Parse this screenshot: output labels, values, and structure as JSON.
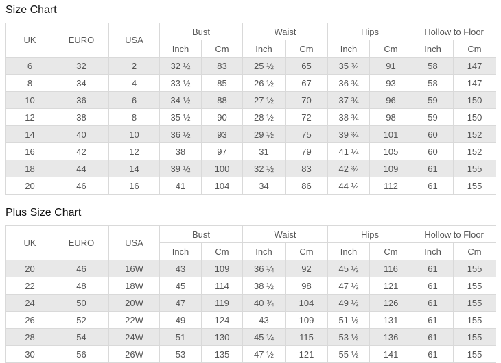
{
  "page": {
    "titles": [
      "Size Chart",
      "Plus Size Chart"
    ]
  },
  "colors": {
    "background": "#ffffff",
    "stripe_row": "#e8e8e8",
    "table_border": "#d9d9d9",
    "cell_text": "#555555",
    "title_text": "#111111"
  },
  "chart_data": [
    {
      "type": "table",
      "title": "Size Chart",
      "column_groups": [
        {
          "label": "UK",
          "colspan": 1
        },
        {
          "label": "EURO",
          "colspan": 1
        },
        {
          "label": "USA",
          "colspan": 1
        },
        {
          "label": "Bust",
          "colspan": 2
        },
        {
          "label": "Waist",
          "colspan": 2
        },
        {
          "label": "Hips",
          "colspan": 2
        },
        {
          "label": "Hollow to Floor",
          "colspan": 2
        }
      ],
      "sub_headers": [
        "Inch",
        "Cm",
        "Inch",
        "Cm",
        "Inch",
        "Cm",
        "Inch",
        "Cm"
      ],
      "rows": [
        [
          "6",
          "32",
          "2",
          "32 ½",
          "83",
          "25 ½",
          "65",
          "35 ¾",
          "91",
          "58",
          "147"
        ],
        [
          "8",
          "34",
          "4",
          "33 ½",
          "85",
          "26 ½",
          "67",
          "36 ¾",
          "93",
          "58",
          "147"
        ],
        [
          "10",
          "36",
          "6",
          "34 ½",
          "88",
          "27 ½",
          "70",
          "37 ¾",
          "96",
          "59",
          "150"
        ],
        [
          "12",
          "38",
          "8",
          "35 ½",
          "90",
          "28 ½",
          "72",
          "38 ¾",
          "98",
          "59",
          "150"
        ],
        [
          "14",
          "40",
          "10",
          "36 ½",
          "93",
          "29 ½",
          "75",
          "39 ¾",
          "101",
          "60",
          "152"
        ],
        [
          "16",
          "42",
          "12",
          "38",
          "97",
          "31",
          "79",
          "41 ¼",
          "105",
          "60",
          "152"
        ],
        [
          "18",
          "44",
          "14",
          "39 ½",
          "100",
          "32 ½",
          "83",
          "42 ¾",
          "109",
          "61",
          "155"
        ],
        [
          "20",
          "46",
          "16",
          "41",
          "104",
          "34",
          "86",
          "44 ¼",
          "112",
          "61",
          "155"
        ]
      ]
    },
    {
      "type": "table",
      "title": "Plus Size Chart",
      "column_groups": [
        {
          "label": "UK",
          "colspan": 1
        },
        {
          "label": "EURO",
          "colspan": 1
        },
        {
          "label": "USA",
          "colspan": 1
        },
        {
          "label": "Bust",
          "colspan": 2
        },
        {
          "label": "Waist",
          "colspan": 2
        },
        {
          "label": "Hips",
          "colspan": 2
        },
        {
          "label": "Hollow to Floor",
          "colspan": 2
        }
      ],
      "sub_headers": [
        "Inch",
        "Cm",
        "Inch",
        "Cm",
        "Inch",
        "Cm",
        "Inch",
        "Cm"
      ],
      "rows": [
        [
          "20",
          "46",
          "16W",
          "43",
          "109",
          "36 ¼",
          "92",
          "45 ½",
          "116",
          "61",
          "155"
        ],
        [
          "22",
          "48",
          "18W",
          "45",
          "114",
          "38 ½",
          "98",
          "47 ½",
          "121",
          "61",
          "155"
        ],
        [
          "24",
          "50",
          "20W",
          "47",
          "119",
          "40 ¾",
          "104",
          "49 ½",
          "126",
          "61",
          "155"
        ],
        [
          "26",
          "52",
          "22W",
          "49",
          "124",
          "43",
          "109",
          "51 ½",
          "131",
          "61",
          "155"
        ],
        [
          "28",
          "54",
          "24W",
          "51",
          "130",
          "45 ¼",
          "115",
          "53 ½",
          "136",
          "61",
          "155"
        ],
        [
          "30",
          "56",
          "26W",
          "53",
          "135",
          "47 ½",
          "121",
          "55 ½",
          "141",
          "61",
          "155"
        ]
      ]
    }
  ]
}
